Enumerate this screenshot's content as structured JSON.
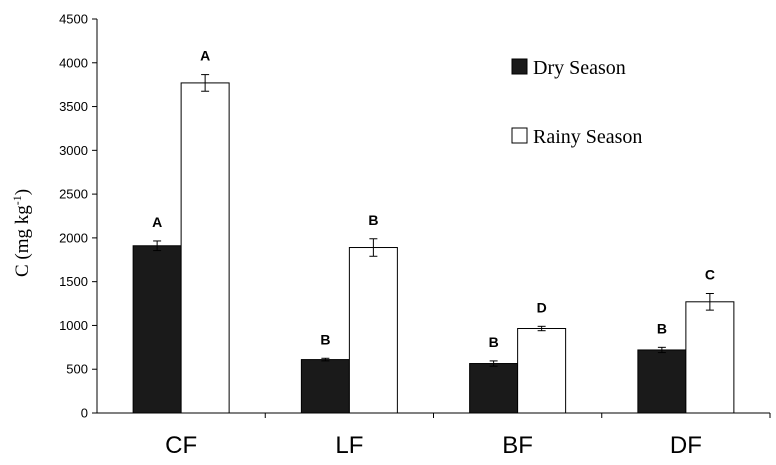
{
  "chart_data": {
    "type": "bar",
    "categories": [
      "CF",
      "LF",
      "BF",
      "DF"
    ],
    "series": [
      {
        "name": "Dry Season",
        "color": "#1a1a1a",
        "values": [
          1910,
          610,
          565,
          720
        ],
        "errors": [
          55,
          15,
          30,
          30
        ],
        "letters": [
          "A",
          "B",
          "B",
          "B"
        ]
      },
      {
        "name": "Rainy Season",
        "color": "#ffffff",
        "values": [
          3770,
          1890,
          965,
          1270
        ],
        "errors": [
          95,
          100,
          25,
          95
        ],
        "letters": [
          "A",
          "B",
          "D",
          "C"
        ]
      }
    ],
    "ylabel_main": "C (mg kg",
    "ylabel_sup": "-1",
    "ylabel_close": ")",
    "xlabel": "",
    "ylim": [
      0,
      4500
    ],
    "yticks": [
      "0",
      "500",
      "1000",
      "1500",
      "2000",
      "2500",
      "3000",
      "3500",
      "4000",
      "4500"
    ],
    "grid": false,
    "legend_position": "top-right"
  }
}
